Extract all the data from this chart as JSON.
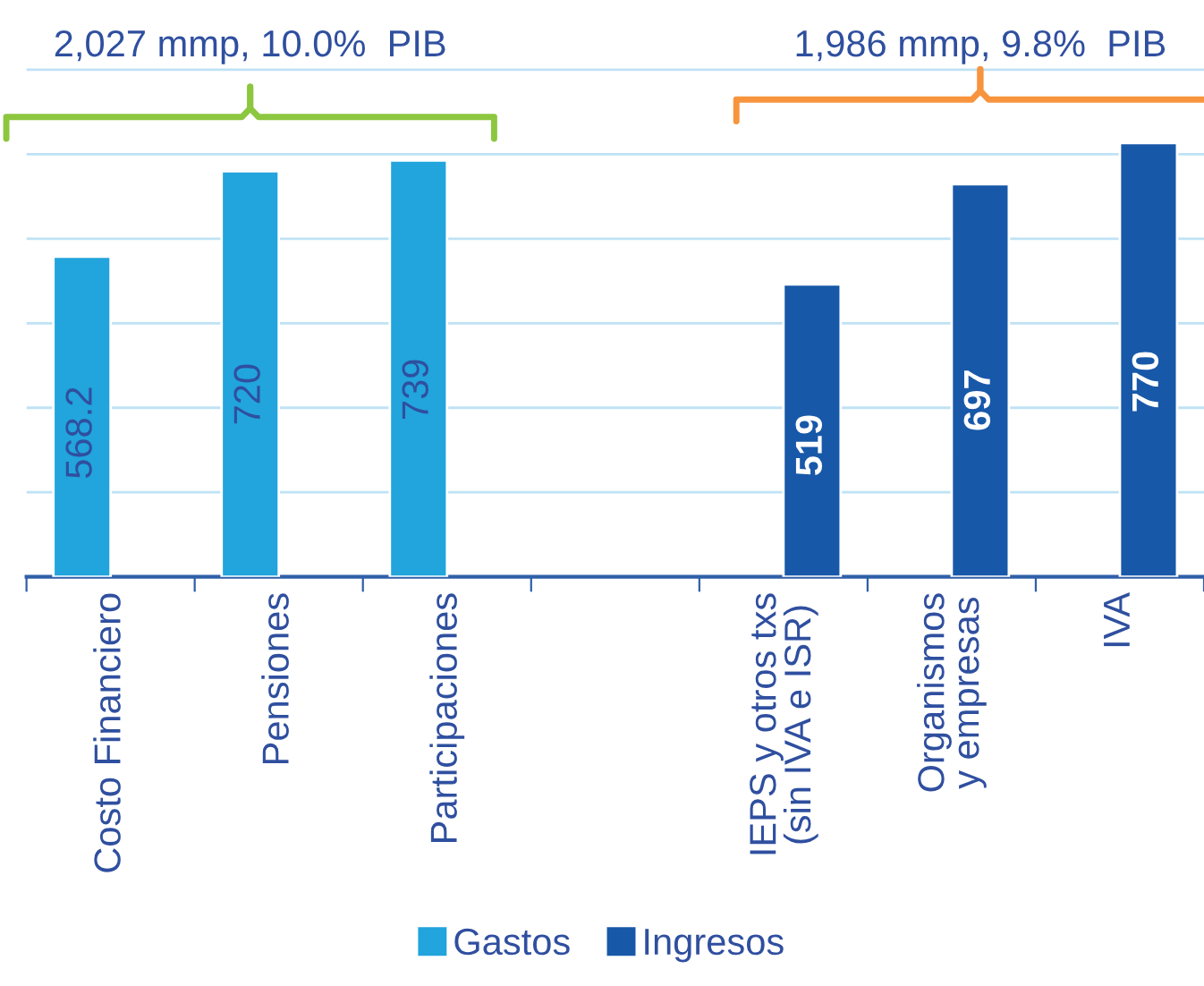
{
  "chart_data": {
    "type": "bar",
    "categories": [
      "Costo Financiero",
      "Pensiones",
      "Participaciones",
      null,
      "IEPS y otros txs\n(sin IVA e ISR)",
      "Organismos\ny empresas",
      "IVA"
    ],
    "series": [
      {
        "name": "Gastos",
        "color": "#22a4dd",
        "values": [
          568.2,
          720,
          739,
          null,
          null,
          null,
          null
        ],
        "value_labels": [
          "568.2",
          "720",
          "739",
          null,
          null,
          null,
          null
        ]
      },
      {
        "name": "Ingresos",
        "color": "#1858a8",
        "values": [
          null,
          null,
          null,
          null,
          519,
          697,
          770
        ],
        "value_labels": [
          null,
          null,
          null,
          null,
          "519",
          "697",
          "770"
        ]
      }
    ],
    "ylim": [
      0,
      910
    ],
    "yticks": [
      {
        "value": 0,
        "label": null
      },
      {
        "value": 150,
        "label": null
      },
      {
        "value": 300,
        "label": null
      },
      {
        "value": 450,
        "label": null
      },
      {
        "value": 600,
        "label": null
      },
      {
        "value": 750,
        "label": null
      },
      {
        "value": 900,
        "label": null
      }
    ],
    "data_labels": true,
    "grid": "y",
    "legend": "bottom",
    "annotations": [
      "2,027 mmp, 10.0%  PIB",
      "1,986 mmp, 9.8%  PIB"
    ]
  }
}
